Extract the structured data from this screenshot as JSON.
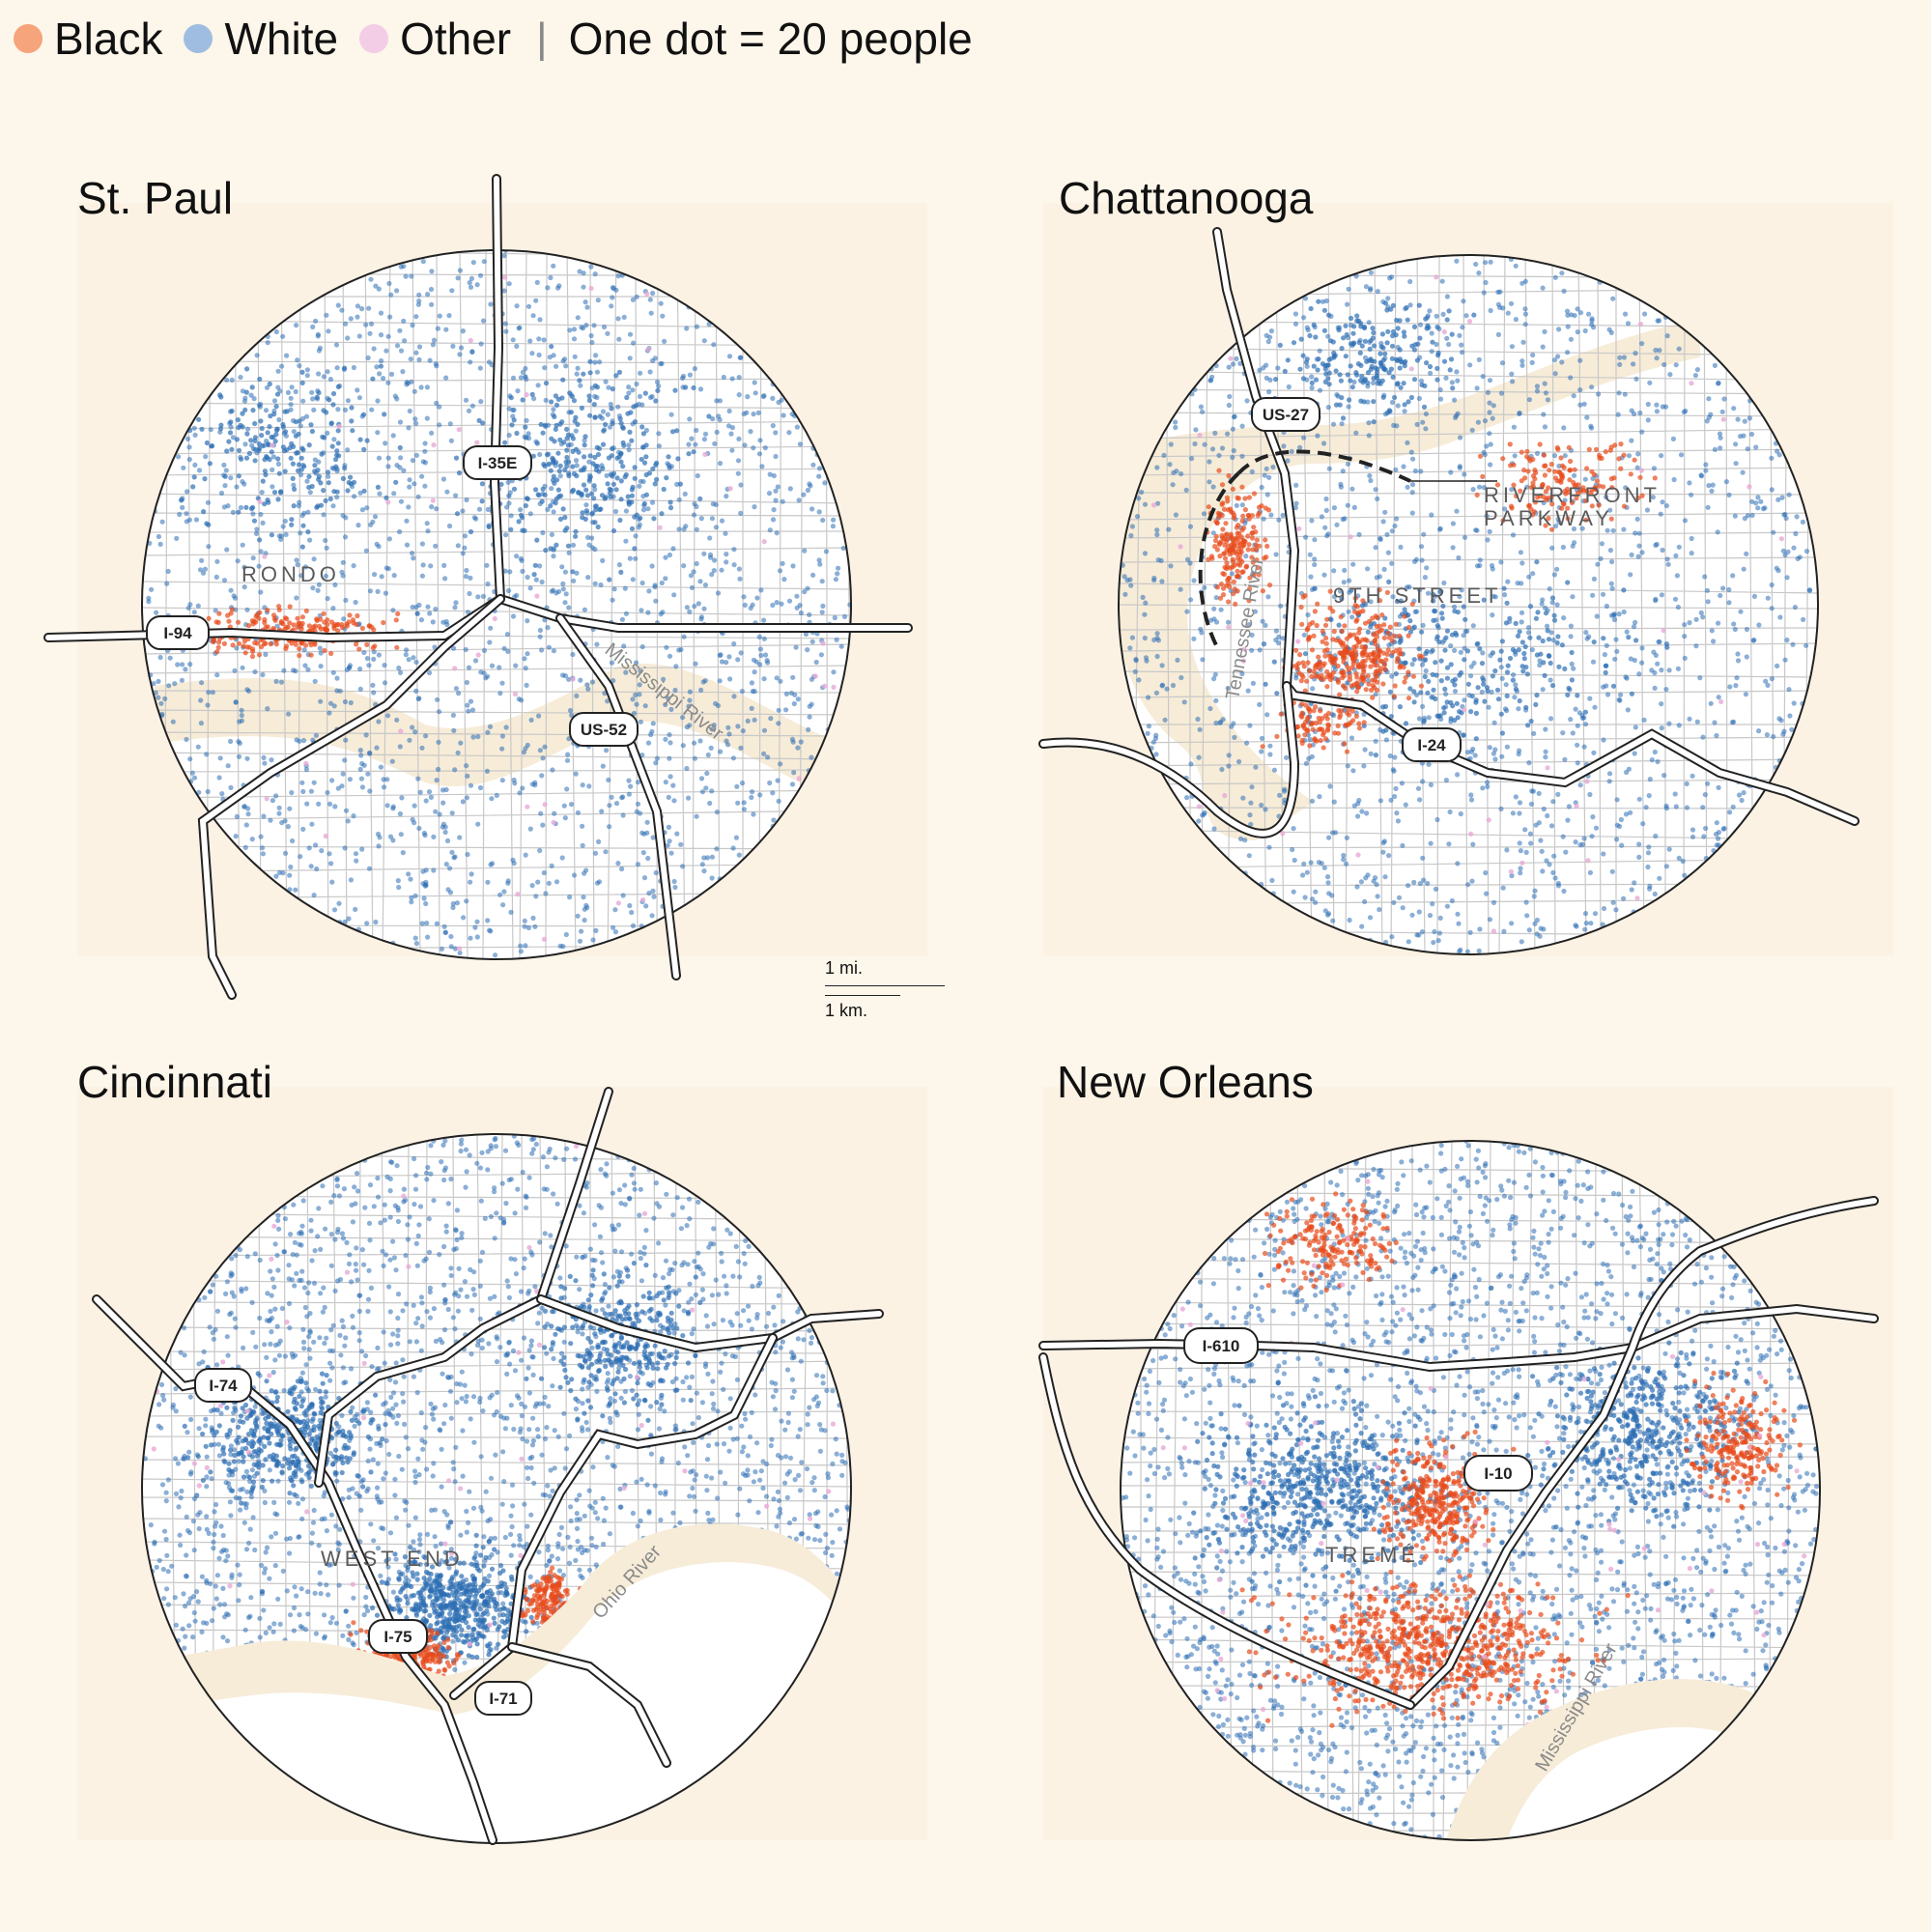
{
  "legend": {
    "items": [
      {
        "label": "Black",
        "color": "#f6a47c"
      },
      {
        "label": "White",
        "color": "#9fbde0"
      },
      {
        "label": "Other",
        "color": "#f3cde6"
      }
    ],
    "separator": "|",
    "note": "One dot = 20 people"
  },
  "colors": {
    "black_dot": "#e84a1a",
    "white_dot": "#2c6db4",
    "other_dot": "#e9a9d6",
    "highway": "#ffffff",
    "highway_casing": "#222222",
    "street": "#c8c8c8",
    "water": "#f7ecd8"
  },
  "scale": {
    "mi_label": "1 mi.",
    "km_label": "1 km."
  },
  "maps": [
    {
      "id": "st-paul",
      "title": "St. Paul",
      "highways": [
        "I-35E",
        "I-94",
        "US-52"
      ],
      "neighborhoods": [
        "RONDO"
      ],
      "rivers": [
        "Mississippi River"
      ]
    },
    {
      "id": "chattanooga",
      "title": "Chattanooga",
      "highways": [
        "US-27",
        "I-24"
      ],
      "neighborhoods": [
        "9TH STREET",
        "RIVERFRONT",
        "PARKWAY"
      ],
      "rivers": [
        "Tennessee River"
      ]
    },
    {
      "id": "cincinnati",
      "title": "Cincinnati",
      "highways": [
        "I-74",
        "I-75",
        "I-71"
      ],
      "neighborhoods": [
        "WEST END"
      ],
      "rivers": [
        "Ohio River"
      ]
    },
    {
      "id": "new-orleans",
      "title": "New Orleans",
      "highways": [
        "I-610",
        "I-10"
      ],
      "neighborhoods": [
        "TREMÉ"
      ],
      "rivers": [
        "Mississippi River"
      ]
    }
  ]
}
